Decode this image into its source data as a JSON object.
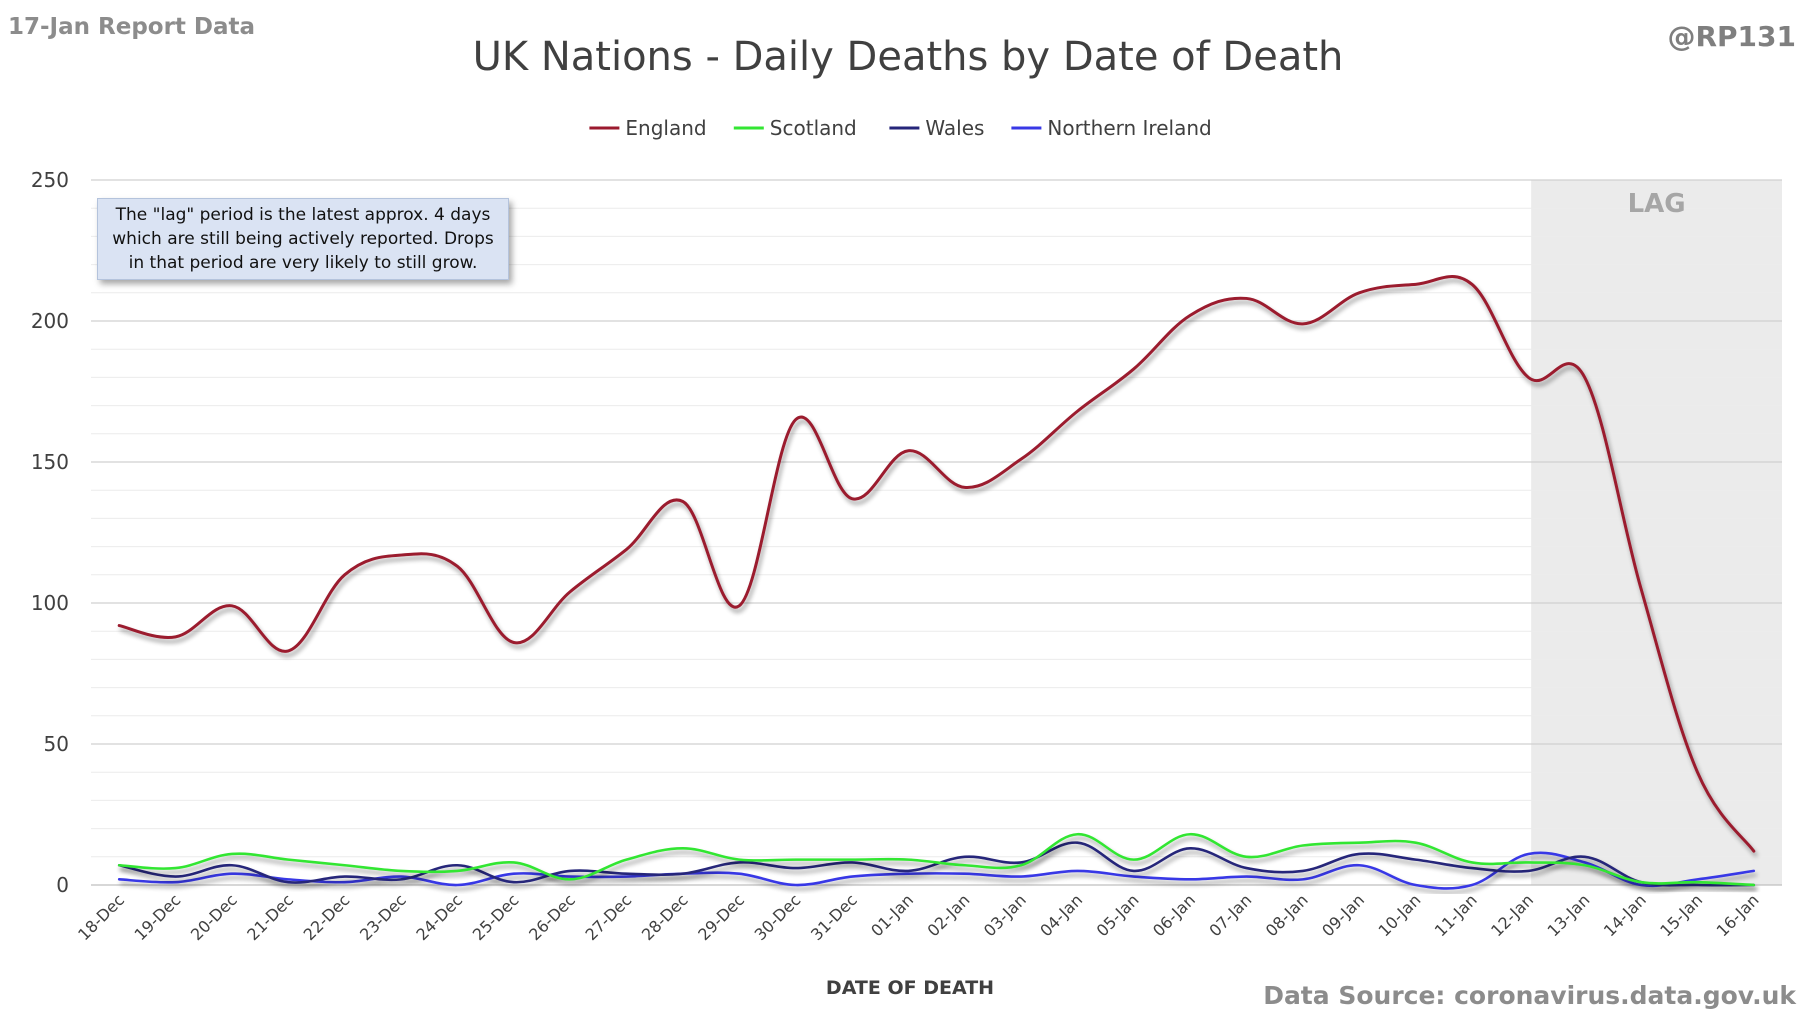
{
  "header": {
    "report_label": "17-Jan Report Data",
    "handle": "@RP131",
    "source": "Data Source: coronavirus.data.gov.uk"
  },
  "note": "The \"lag\" period is the latest approx. 4 days which are still being actively reported. Drops in that period are very likely to still grow.",
  "lag_label": "LAG",
  "colors": {
    "England": "#9b1a2e",
    "Scotland": "#33e633",
    "Wales": "#26267a",
    "Northern Ireland": "#3838e6",
    "lag_shade": "#ebebeb",
    "grid_major": "#d0d0d0",
    "grid_minor": "#ececec"
  },
  "chart_data": {
    "type": "line",
    "title": "UK Nations - Daily Deaths by Date of Death",
    "xlabel": "DATE OF DEATH",
    "ylabel": "",
    "ylim": [
      0,
      250
    ],
    "yticks": [
      0,
      50,
      100,
      150,
      200,
      250
    ],
    "minor_gridlines": true,
    "legend_position": "top-center",
    "lag_period": [
      "13-Jan",
      "16-Jan"
    ],
    "categories": [
      "18-Dec",
      "19-Dec",
      "20-Dec",
      "21-Dec",
      "22-Dec",
      "23-Dec",
      "24-Dec",
      "25-Dec",
      "26-Dec",
      "27-Dec",
      "28-Dec",
      "29-Dec",
      "30-Dec",
      "31-Dec",
      "01-Jan",
      "02-Jan",
      "03-Jan",
      "04-Jan",
      "05-Jan",
      "06-Jan",
      "07-Jan",
      "08-Jan",
      "09-Jan",
      "10-Jan",
      "11-Jan",
      "12-Jan",
      "13-Jan",
      "14-Jan",
      "15-Jan",
      "16-Jan"
    ],
    "series": [
      {
        "name": "England",
        "values": [
          92,
          88,
          99,
          83,
          110,
          117,
          113,
          86,
          104,
          119,
          136,
          99,
          165,
          137,
          154,
          141,
          151,
          168,
          183,
          202,
          208,
          199,
          210,
          213,
          213,
          180,
          180,
          105,
          40,
          12
        ]
      },
      {
        "name": "Scotland",
        "values": [
          7,
          6,
          11,
          9,
          7,
          5,
          5,
          8,
          2,
          9,
          13,
          9,
          9,
          9,
          9,
          7,
          7,
          18,
          9,
          18,
          10,
          14,
          15,
          15,
          8,
          8,
          7,
          1,
          1,
          0
        ]
      },
      {
        "name": "Wales",
        "values": [
          7,
          3,
          7,
          1,
          3,
          2,
          7,
          1,
          5,
          4,
          4,
          8,
          6,
          8,
          5,
          10,
          8,
          15,
          5,
          13,
          6,
          5,
          11,
          9,
          6,
          5,
          10,
          1,
          0,
          0
        ]
      },
      {
        "name": "Northern Ireland",
        "values": [
          2,
          1,
          4,
          2,
          1,
          3,
          0,
          4,
          3,
          3,
          4,
          4,
          0,
          3,
          4,
          4,
          3,
          5,
          3,
          2,
          3,
          2,
          7,
          0,
          0,
          11,
          8,
          0,
          2,
          5
        ]
      }
    ]
  }
}
